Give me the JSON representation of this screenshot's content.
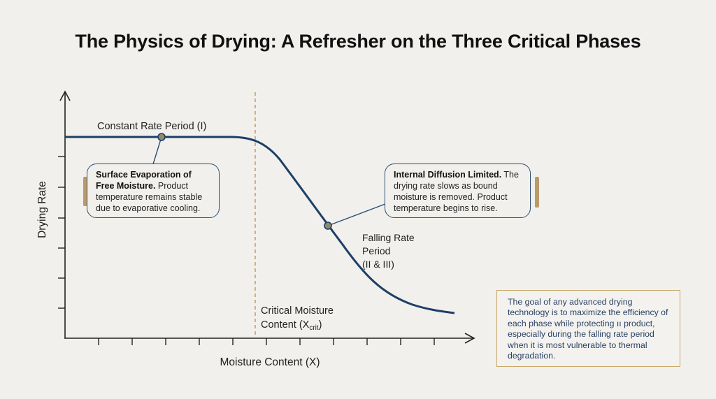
{
  "title": "The Physics of Drying: A Refresher on the Three Critical Phases",
  "axes": {
    "ylabel": "Drying Rate",
    "xlabel": "Moisture Content (X)"
  },
  "labels": {
    "constant_rate": "Constant Rate Period (I)",
    "falling_rate_line1": "Falling Rate",
    "falling_rate_line2": "Period",
    "falling_rate_line3": "(II & III)",
    "critical_line1": "Critical Moisture",
    "critical_line2_prefix": "Content (X",
    "critical_line2_sub": "crit",
    "critical_line2_suffix": ")"
  },
  "callouts": {
    "left": {
      "bold": "Surface Evaporation of Free Moisture.",
      "text": " Product temperature remains stable due to evaporative cooling."
    },
    "right": {
      "bold": "Internal Diffusion Limited.",
      "text": " The drying rate slows as bound moisture is removed. Product temperature begins to rise."
    }
  },
  "note": "The goal of any advanced drying technology is to maximize the efficiency of each phase while protecting ıı product, especially during the falling rate period when it is most vulnerable to thermal degradation.",
  "colors": {
    "curve": "#1d3f66",
    "critical_line": "#c9a06b",
    "accent": "#b99a6a",
    "note_border": "#c9a867",
    "note_text": "#2a3f66"
  }
}
